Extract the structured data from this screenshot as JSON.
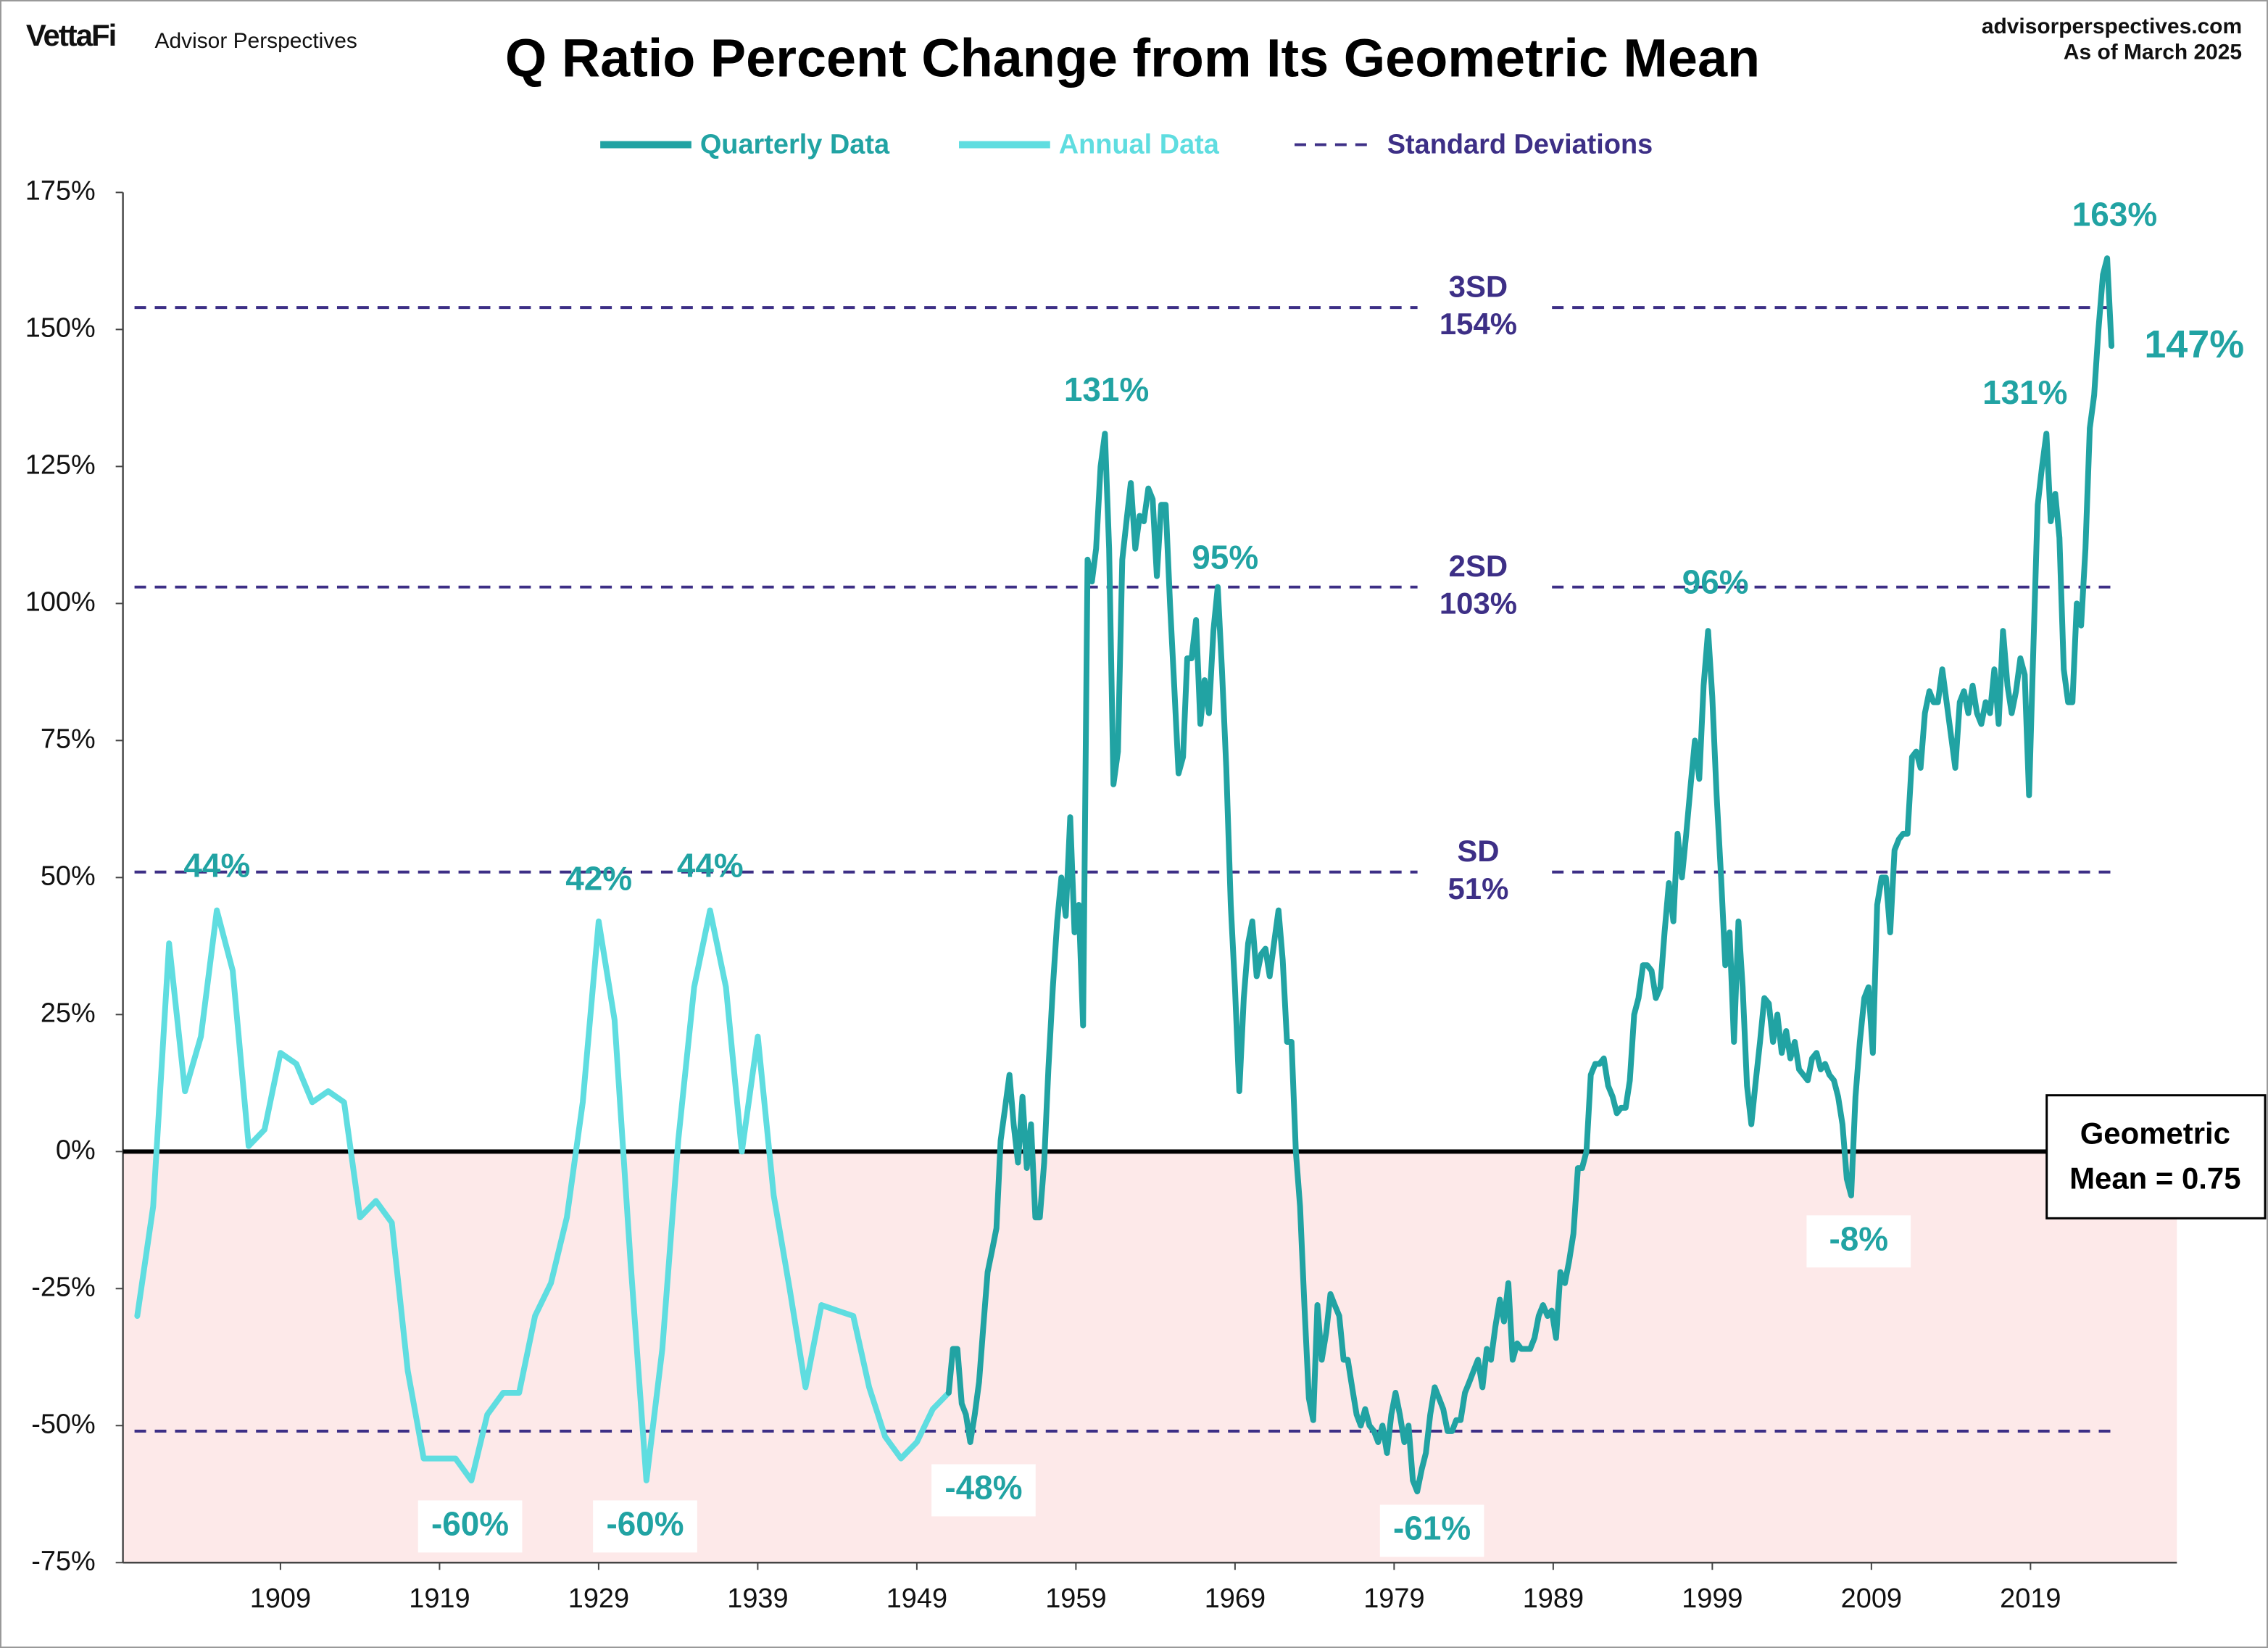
{
  "header": {
    "logo": "VettaFi",
    "brand": "Advisor Perspectives",
    "site": "advisorperspectives.com",
    "as_of": "As of March 2025"
  },
  "chart_data": {
    "type": "line",
    "title": "Q Ratio Percent Change from Its Geometric Mean",
    "legend": "top",
    "xlim": [
      1899.1,
      2028.2
    ],
    "xticks": [
      1909,
      1919,
      1929,
      1939,
      1949,
      1959,
      1969,
      1979,
      1989,
      1999,
      2009,
      2019
    ],
    "ylim": [
      -75,
      175
    ],
    "yticks": [
      {
        "value": -75,
        "label": "-75%"
      },
      {
        "value": -50,
        "label": "-50%"
      },
      {
        "value": -25,
        "label": "-25%"
      },
      {
        "value": 0,
        "label": "0%"
      },
      {
        "value": 25,
        "label": "25%"
      },
      {
        "value": 50,
        "label": "50%"
      },
      {
        "value": 75,
        "label": "75%"
      },
      {
        "value": 100,
        "label": "100%"
      },
      {
        "value": 125,
        "label": "125%"
      },
      {
        "value": 150,
        "label": "150%"
      },
      {
        "value": 175,
        "label": "175%"
      }
    ],
    "shade_negative": "#fde9e9",
    "sd_name": "Standard Deviations",
    "sd_color": "#3d2f86",
    "sd_lines": [
      {
        "value": 154,
        "label": "3SD",
        "value_label": "154%"
      },
      {
        "value": 103,
        "label": "2SD",
        "value_label": "103%"
      },
      {
        "value": 51,
        "label": "SD",
        "value_label": "51%"
      },
      {
        "value": -51
      }
    ],
    "mean_box": [
      "Geometric",
      "Mean = 0.75"
    ],
    "annotations": [
      "44%",
      "42%",
      "44%",
      "-60%",
      "-60%",
      "-48%",
      "131%",
      "95%",
      "-61%",
      "96%",
      "-8%",
      "131%",
      "163%",
      "147%"
    ],
    "series": [
      {
        "name": "Quarterly Data",
        "color": "#21a3a3",
        "x": [
          1951,
          1951.27,
          1951.55,
          1951.82,
          1952.09,
          1952.36,
          1952.64,
          1952.91,
          1953.18,
          1953.45,
          1953.73,
          1954,
          1954.27,
          1954.55,
          1954.82,
          1955.09,
          1955.36,
          1955.64,
          1955.91,
          1956.18,
          1956.45,
          1956.73,
          1957,
          1957.27,
          1957.55,
          1957.82,
          1958.09,
          1958.36,
          1958.64,
          1958.91,
          1959.18,
          1959.45,
          1959.73,
          1960,
          1960.27,
          1960.55,
          1960.82,
          1961.09,
          1961.36,
          1961.64,
          1961.91,
          1962.18,
          1962.45,
          1962.73,
          1963,
          1963.27,
          1963.55,
          1963.82,
          1964.09,
          1964.36,
          1964.64,
          1964.91,
          1965.18,
          1965.45,
          1965.73,
          1966,
          1966.27,
          1966.55,
          1966.82,
          1967.09,
          1967.36,
          1967.64,
          1967.91,
          1968.18,
          1968.45,
          1968.73,
          1969,
          1969.27,
          1969.55,
          1969.82,
          1970.09,
          1970.36,
          1970.64,
          1970.91,
          1971.18,
          1971.45,
          1971.73,
          1972,
          1972.27,
          1972.55,
          1972.82,
          1973.09,
          1973.36,
          1973.64,
          1973.91,
          1974.18,
          1974.45,
          1974.73,
          1975,
          1975.27,
          1975.55,
          1975.82,
          1976.09,
          1976.36,
          1976.64,
          1976.91,
          1977.18,
          1977.45,
          1977.73,
          1978,
          1978.27,
          1978.55,
          1978.82,
          1979.09,
          1979.36,
          1979.64,
          1979.91,
          1980.18,
          1980.45,
          1980.73,
          1981,
          1981.27,
          1981.55,
          1981.82,
          1982.09,
          1982.36,
          1982.64,
          1982.91,
          1983.18,
          1983.45,
          1983.73,
          1984,
          1984.27,
          1984.55,
          1984.82,
          1985.09,
          1985.36,
          1985.64,
          1985.91,
          1986.18,
          1986.45,
          1986.73,
          1987,
          1987.27,
          1987.55,
          1987.82,
          1988.09,
          1988.36,
          1988.64,
          1988.91,
          1989.18,
          1989.45,
          1989.73,
          1990,
          1990.27,
          1990.55,
          1990.82,
          1991.09,
          1991.36,
          1991.64,
          1991.91,
          1992.18,
          1992.45,
          1992.73,
          1993,
          1993.27,
          1993.55,
          1993.82,
          1994.09,
          1994.36,
          1994.64,
          1994.91,
          1995.18,
          1995.45,
          1995.73,
          1996,
          1996.27,
          1996.55,
          1996.82,
          1997.09,
          1997.36,
          1997.64,
          1997.91,
          1998.18,
          1998.45,
          1998.73,
          1999,
          1999.27,
          1999.55,
          1999.82,
          2000.09,
          2000.36,
          2000.64,
          2000.91,
          2001.18,
          2001.45,
          2001.73,
          2002,
          2002.27,
          2002.55,
          2002.82,
          2003.09,
          2003.36,
          2003.64,
          2003.91,
          2004.18,
          2004.45,
          2004.73,
          2005,
          2005.27,
          2005.55,
          2005.82,
          2006.09,
          2006.36,
          2006.64,
          2006.91,
          2007.18,
          2007.45,
          2007.73,
          2008,
          2008.27,
          2008.55,
          2008.82,
          2009.09,
          2009.36,
          2009.64,
          2009.91,
          2010.18,
          2010.45,
          2010.73,
          2011,
          2011.27,
          2011.55,
          2011.82,
          2012.09,
          2012.36,
          2012.64,
          2012.91,
          2013.18,
          2013.45,
          2013.73,
          2014,
          2014.27,
          2014.55,
          2014.82,
          2015.09,
          2015.36,
          2015.64,
          2015.91,
          2016.18,
          2016.45,
          2016.73,
          2017,
          2017.27,
          2017.55,
          2017.82,
          2018.09,
          2018.36,
          2018.64,
          2018.91,
          2019.18,
          2019.45,
          2019.73,
          2020,
          2020.27,
          2020.55,
          2020.82,
          2021.09,
          2021.36,
          2021.64,
          2021.91,
          2022.18,
          2022.45,
          2022.73,
          2023,
          2023.27,
          2023.55,
          2023.82,
          2024.09
        ],
        "values": [
          -44,
          -36,
          -36,
          -46,
          -48,
          -53,
          -48,
          -42,
          -32,
          -22,
          -18,
          -14,
          2,
          8,
          14,
          5,
          -2,
          10,
          -3,
          5,
          -12,
          -12,
          -2,
          15,
          30,
          42,
          50,
          43,
          61,
          40,
          45,
          23,
          108,
          104,
          110,
          125,
          131,
          110,
          67,
          73,
          108,
          115,
          122,
          110,
          116,
          115,
          121,
          119,
          105,
          118,
          118,
          100,
          85,
          69,
          72,
          90,
          90,
          97,
          78,
          86,
          80,
          95,
          103,
          88,
          70,
          45,
          30,
          11,
          28,
          38,
          42,
          32,
          36,
          37,
          32,
          38,
          44,
          35,
          20,
          20,
          0,
          -10,
          -28,
          -45,
          -49,
          -28,
          -38,
          -33,
          -26,
          -28,
          -30,
          -38,
          -38,
          -43,
          -48,
          -50,
          -47,
          -50,
          -51,
          -53,
          -50,
          -55,
          -48,
          -44,
          -48,
          -53,
          -50,
          -60,
          -62,
          -58,
          -55,
          -48,
          -43,
          -45,
          -47,
          -51,
          -51,
          -49,
          -49,
          -44,
          -42,
          -40,
          -38,
          -43,
          -36,
          -38,
          -32,
          -27,
          -31,
          -24,
          -38,
          -35,
          -36,
          -36,
          -36,
          -34,
          -30,
          -28,
          -30,
          -29,
          -34,
          -22,
          -24,
          -20,
          -15,
          -3,
          -3,
          0,
          14,
          16,
          16,
          17,
          12,
          10,
          7,
          8,
          8,
          13,
          25,
          28,
          34,
          34,
          33,
          28,
          30,
          40,
          49,
          42,
          58,
          50,
          58,
          67,
          75,
          68,
          85,
          95,
          83,
          65,
          50,
          34,
          40,
          20,
          42,
          30,
          12,
          5,
          13,
          20,
          28,
          27,
          20,
          25,
          18,
          22,
          17,
          20,
          15,
          14,
          13,
          17,
          18,
          15,
          16,
          14,
          13,
          10,
          5,
          -5,
          -8,
          10,
          20,
          28,
          30,
          18,
          45,
          50,
          50,
          40,
          55,
          57,
          58,
          58,
          72,
          73,
          70,
          80,
          84,
          82,
          82,
          88,
          82,
          76,
          70,
          82,
          84,
          80,
          85,
          80,
          78,
          82,
          80,
          88,
          78,
          95,
          85,
          80,
          84,
          90,
          87,
          65,
          92,
          118,
          125,
          131,
          115,
          120,
          112,
          88,
          82,
          82,
          100,
          96,
          110,
          132,
          138,
          150,
          160,
          163,
          147
        ]
      },
      {
        "name": "Annual Data",
        "color": "#5fdde0",
        "x": [
          1900,
          1901,
          1902,
          1903,
          1904,
          1905,
          1906,
          1907,
          1908,
          1909,
          1910,
          1911,
          1912,
          1913,
          1914,
          1915,
          1916,
          1917,
          1918,
          1919,
          1920,
          1921,
          1922,
          1923,
          1924,
          1925,
          1926,
          1927,
          1928,
          1929,
          1930,
          1931,
          1932,
          1933,
          1934,
          1935,
          1936,
          1937,
          1938,
          1939,
          1940,
          1941,
          1942,
          1943,
          1944,
          1945,
          1946,
          1947,
          1948,
          1949,
          1950,
          1951
        ],
        "values": [
          -30,
          -10,
          38,
          11,
          21,
          44,
          33,
          1,
          4,
          18,
          16,
          9,
          11,
          9,
          -12,
          -9,
          -13,
          -40,
          -56,
          -56,
          -56,
          -60,
          -48,
          -44,
          -44,
          -30,
          -24,
          -12,
          9,
          42,
          24,
          -20,
          -60,
          -36,
          2,
          30,
          44,
          30,
          0,
          21,
          -8,
          -25,
          -43,
          -28,
          -29,
          -30,
          -43,
          -52,
          -56,
          -53,
          -47,
          -44
        ]
      }
    ]
  }
}
